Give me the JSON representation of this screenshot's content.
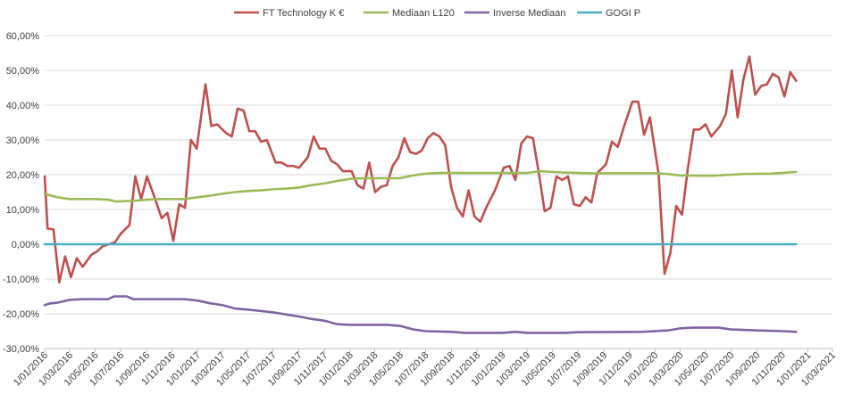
{
  "chart_data": {
    "type": "line",
    "title": "",
    "xlabel": "",
    "ylabel": "",
    "legend_position": "top",
    "grid": "horizontal",
    "ylim": [
      -30,
      60
    ],
    "yticks": [
      {
        "value": 60,
        "label": "60,00%"
      },
      {
        "value": 50,
        "label": "50,00%"
      },
      {
        "value": 40,
        "label": "40,00%"
      },
      {
        "value": 30,
        "label": "30,00%"
      },
      {
        "value": 20,
        "label": "20,00%"
      },
      {
        "value": 10,
        "label": "10,00%"
      },
      {
        "value": 0,
        "label": "0,00%"
      },
      {
        "value": -10,
        "label": "-10,00%"
      },
      {
        "value": -20,
        "label": "-20,00%"
      },
      {
        "value": -30,
        "label": "-30,00%"
      }
    ],
    "xlim": [
      "2016-01-01",
      "2021-03-01"
    ],
    "xticks": [
      {
        "date": "2016-01-01",
        "label": "1/01/2016"
      },
      {
        "date": "2016-03-01",
        "label": "1/03/2016"
      },
      {
        "date": "2016-05-01",
        "label": "1/05/2016"
      },
      {
        "date": "2016-07-01",
        "label": "1/07/2016"
      },
      {
        "date": "2016-09-01",
        "label": "1/09/2016"
      },
      {
        "date": "2016-11-01",
        "label": "1/11/2016"
      },
      {
        "date": "2017-01-01",
        "label": "1/01/2017"
      },
      {
        "date": "2017-03-01",
        "label": "1/03/2017"
      },
      {
        "date": "2017-05-01",
        "label": "1/05/2017"
      },
      {
        "date": "2017-07-01",
        "label": "1/07/2017"
      },
      {
        "date": "2017-09-01",
        "label": "1/09/2017"
      },
      {
        "date": "2017-11-01",
        "label": "1/11/2017"
      },
      {
        "date": "2018-01-01",
        "label": "1/01/2018"
      },
      {
        "date": "2018-03-01",
        "label": "1/03/2018"
      },
      {
        "date": "2018-05-01",
        "label": "1/05/2018"
      },
      {
        "date": "2018-07-01",
        "label": "1/07/2018"
      },
      {
        "date": "2018-09-01",
        "label": "1/09/2018"
      },
      {
        "date": "2018-11-01",
        "label": "1/11/2018"
      },
      {
        "date": "2019-01-01",
        "label": "1/01/2019"
      },
      {
        "date": "2019-03-01",
        "label": "1/03/2019"
      },
      {
        "date": "2019-05-01",
        "label": "1/05/2019"
      },
      {
        "date": "2019-07-01",
        "label": "1/07/2019"
      },
      {
        "date": "2019-09-01",
        "label": "1/09/2019"
      },
      {
        "date": "2019-11-01",
        "label": "1/11/2019"
      },
      {
        "date": "2020-01-01",
        "label": "1/01/2020"
      },
      {
        "date": "2020-03-01",
        "label": "1/03/2020"
      },
      {
        "date": "2020-05-01",
        "label": "1/05/2020"
      },
      {
        "date": "2020-07-01",
        "label": "1/07/2020"
      },
      {
        "date": "2020-09-01",
        "label": "1/09/2020"
      },
      {
        "date": "2020-11-01",
        "label": "1/11/2020"
      },
      {
        "date": "2021-01-01",
        "label": "1/01/2021"
      },
      {
        "date": "2021-03-01",
        "label": "1/03/2021"
      }
    ],
    "series": [
      {
        "name": "FT Technology K €",
        "color": "#C0504D",
        "points": [
          [
            "2016-01-01",
            19.5
          ],
          [
            "2016-01-08",
            4.5
          ],
          [
            "2016-01-22",
            4.3
          ],
          [
            "2016-02-05",
            -11
          ],
          [
            "2016-02-19",
            -3.5
          ],
          [
            "2016-03-04",
            -9.5
          ],
          [
            "2016-03-18",
            -4
          ],
          [
            "2016-04-01",
            -6.5
          ],
          [
            "2016-04-22",
            -3
          ],
          [
            "2016-05-06",
            -2
          ],
          [
            "2016-05-20",
            -0.5
          ],
          [
            "2016-06-03",
            0
          ],
          [
            "2016-06-17",
            0.5
          ],
          [
            "2016-07-01",
            3
          ],
          [
            "2016-07-22",
            5.5
          ],
          [
            "2016-08-05",
            19.5
          ],
          [
            "2016-08-19",
            13
          ],
          [
            "2016-09-02",
            19.5
          ],
          [
            "2016-09-23",
            12.5
          ],
          [
            "2016-10-07",
            7.5
          ],
          [
            "2016-10-21",
            9
          ],
          [
            "2016-11-04",
            1
          ],
          [
            "2016-11-18",
            11.5
          ],
          [
            "2016-12-02",
            10.5
          ],
          [
            "2016-12-16",
            30
          ],
          [
            "2016-12-30",
            27.5
          ],
          [
            "2017-01-20",
            46
          ],
          [
            "2017-02-03",
            34
          ],
          [
            "2017-02-17",
            34.5
          ],
          [
            "2017-03-10",
            32
          ],
          [
            "2017-03-24",
            31
          ],
          [
            "2017-04-07",
            39
          ],
          [
            "2017-04-21",
            38.5
          ],
          [
            "2017-05-05",
            32.5
          ],
          [
            "2017-05-19",
            32.5
          ],
          [
            "2017-06-02",
            29.5
          ],
          [
            "2017-06-16",
            30
          ],
          [
            "2017-07-07",
            23.5
          ],
          [
            "2017-07-21",
            23.5
          ],
          [
            "2017-08-04",
            22.5
          ],
          [
            "2017-08-18",
            22.5
          ],
          [
            "2017-09-01",
            22
          ],
          [
            "2017-09-22",
            25
          ],
          [
            "2017-10-06",
            31
          ],
          [
            "2017-10-20",
            27.5
          ],
          [
            "2017-11-03",
            27.5
          ],
          [
            "2017-11-17",
            24
          ],
          [
            "2017-12-01",
            23
          ],
          [
            "2017-12-15",
            21
          ],
          [
            "2018-01-05",
            21
          ],
          [
            "2018-01-19",
            17
          ],
          [
            "2018-02-02",
            16
          ],
          [
            "2018-02-16",
            23.5
          ],
          [
            "2018-03-02",
            15
          ],
          [
            "2018-03-16",
            16.5
          ],
          [
            "2018-03-30",
            17
          ],
          [
            "2018-04-13",
            22.5
          ],
          [
            "2018-04-27",
            25
          ],
          [
            "2018-05-11",
            30.5
          ],
          [
            "2018-05-25",
            26.5
          ],
          [
            "2018-06-08",
            26
          ],
          [
            "2018-06-22",
            27
          ],
          [
            "2018-07-06",
            30.5
          ],
          [
            "2018-07-20",
            32
          ],
          [
            "2018-08-03",
            31
          ],
          [
            "2018-08-17",
            28.5
          ],
          [
            "2018-08-31",
            16.5
          ],
          [
            "2018-09-14",
            10.5
          ],
          [
            "2018-09-28",
            8
          ],
          [
            "2018-10-12",
            15.5
          ],
          [
            "2018-10-26",
            8
          ],
          [
            "2018-11-09",
            6.5
          ],
          [
            "2018-11-23",
            10.5
          ],
          [
            "2018-12-14",
            15.5
          ],
          [
            "2019-01-04",
            22
          ],
          [
            "2019-01-18",
            22.5
          ],
          [
            "2019-02-01",
            18.5
          ],
          [
            "2019-02-15",
            29
          ],
          [
            "2019-03-01",
            31
          ],
          [
            "2019-03-15",
            30.5
          ],
          [
            "2019-03-29",
            20.5
          ],
          [
            "2019-04-12",
            9.5
          ],
          [
            "2019-04-26",
            10.5
          ],
          [
            "2019-05-10",
            19.5
          ],
          [
            "2019-05-24",
            18.5
          ],
          [
            "2019-06-07",
            19.5
          ],
          [
            "2019-06-21",
            11.5
          ],
          [
            "2019-07-05",
            11
          ],
          [
            "2019-07-19",
            13.5
          ],
          [
            "2019-08-02",
            12
          ],
          [
            "2019-08-16",
            20.5
          ],
          [
            "2019-09-06",
            23
          ],
          [
            "2019-09-20",
            29.5
          ],
          [
            "2019-10-04",
            28
          ],
          [
            "2019-10-18",
            33.5
          ],
          [
            "2019-11-08",
            41
          ],
          [
            "2019-11-22",
            41
          ],
          [
            "2019-12-06",
            31.5
          ],
          [
            "2019-12-20",
            36.5
          ],
          [
            "2020-01-10",
            20
          ],
          [
            "2020-01-24",
            -8.5
          ],
          [
            "2020-02-07",
            -2.5
          ],
          [
            "2020-02-21",
            11
          ],
          [
            "2020-03-06",
            8.5
          ],
          [
            "2020-03-20",
            22
          ],
          [
            "2020-04-03",
            33
          ],
          [
            "2020-04-17",
            33
          ],
          [
            "2020-05-01",
            34.5
          ],
          [
            "2020-05-15",
            31
          ],
          [
            "2020-06-05",
            34
          ],
          [
            "2020-06-19",
            37.5
          ],
          [
            "2020-07-03",
            50
          ],
          [
            "2020-07-17",
            36.5
          ],
          [
            "2020-07-31",
            47.5
          ],
          [
            "2020-08-14",
            54
          ],
          [
            "2020-08-28",
            43
          ],
          [
            "2020-09-11",
            45.5
          ],
          [
            "2020-09-25",
            46
          ],
          [
            "2020-10-09",
            49
          ],
          [
            "2020-10-23",
            48
          ],
          [
            "2020-11-06",
            42.5
          ],
          [
            "2020-11-20",
            49.5
          ],
          [
            "2020-12-04",
            47
          ]
        ]
      },
      {
        "name": "Mediaan L120",
        "color": "#9BBB59",
        "points": [
          [
            "2016-01-01",
            14.5
          ],
          [
            "2016-02-01",
            13.5
          ],
          [
            "2016-03-01",
            13
          ],
          [
            "2016-05-01",
            13
          ],
          [
            "2016-06-01",
            12.8
          ],
          [
            "2016-06-20",
            12.3
          ],
          [
            "2016-08-01",
            12.5
          ],
          [
            "2016-09-01",
            12.8
          ],
          [
            "2016-10-01",
            13
          ],
          [
            "2016-12-01",
            13
          ],
          [
            "2017-01-01",
            13.5
          ],
          [
            "2017-02-01",
            14
          ],
          [
            "2017-03-01",
            14.5
          ],
          [
            "2017-04-01",
            15
          ],
          [
            "2017-05-01",
            15.3
          ],
          [
            "2017-06-01",
            15.5
          ],
          [
            "2017-07-01",
            15.8
          ],
          [
            "2017-08-01",
            16
          ],
          [
            "2017-09-01",
            16.3
          ],
          [
            "2017-10-01",
            17
          ],
          [
            "2017-11-01",
            17.5
          ],
          [
            "2017-12-01",
            18.2
          ],
          [
            "2018-01-01",
            18.8
          ],
          [
            "2018-02-01",
            19
          ],
          [
            "2018-05-01",
            19
          ],
          [
            "2018-06-01",
            19.8
          ],
          [
            "2018-07-01",
            20.3
          ],
          [
            "2018-08-01",
            20.5
          ],
          [
            "2019-03-01",
            20.5
          ],
          [
            "2019-04-01",
            21
          ],
          [
            "2019-05-01",
            20.8
          ],
          [
            "2019-06-01",
            20.6
          ],
          [
            "2019-08-01",
            20.4
          ],
          [
            "2020-01-01",
            20.4
          ],
          [
            "2020-02-01",
            20.2
          ],
          [
            "2020-03-01",
            19.8
          ],
          [
            "2020-05-01",
            19.7
          ],
          [
            "2020-06-01",
            19.8
          ],
          [
            "2020-07-01",
            20
          ],
          [
            "2020-08-01",
            20.2
          ],
          [
            "2020-10-01",
            20.3
          ],
          [
            "2020-11-01",
            20.5
          ],
          [
            "2020-12-04",
            20.8
          ]
        ]
      },
      {
        "name": "Inverse Mediaan",
        "color": "#8064A2",
        "points": [
          [
            "2016-01-01",
            -17.5
          ],
          [
            "2016-01-15",
            -17
          ],
          [
            "2016-02-01",
            -16.8
          ],
          [
            "2016-03-01",
            -16
          ],
          [
            "2016-04-01",
            -15.8
          ],
          [
            "2016-06-01",
            -15.8
          ],
          [
            "2016-06-15",
            -15
          ],
          [
            "2016-07-15",
            -15
          ],
          [
            "2016-08-01",
            -15.8
          ],
          [
            "2016-12-01",
            -15.8
          ],
          [
            "2017-01-01",
            -16.2
          ],
          [
            "2017-02-01",
            -17
          ],
          [
            "2017-03-01",
            -17.5
          ],
          [
            "2017-04-01",
            -18.5
          ],
          [
            "2017-05-01",
            -18.8
          ],
          [
            "2017-06-01",
            -19.2
          ],
          [
            "2017-07-01",
            -19.6
          ],
          [
            "2017-08-01",
            -20.2
          ],
          [
            "2017-09-01",
            -20.8
          ],
          [
            "2017-10-01",
            -21.5
          ],
          [
            "2017-11-01",
            -22
          ],
          [
            "2017-12-01",
            -23
          ],
          [
            "2018-01-01",
            -23.2
          ],
          [
            "2018-04-01",
            -23.2
          ],
          [
            "2018-05-01",
            -23.5
          ],
          [
            "2018-06-01",
            -24.5
          ],
          [
            "2018-07-01",
            -25
          ],
          [
            "2018-09-01",
            -25.2
          ],
          [
            "2018-10-01",
            -25.5
          ],
          [
            "2019-01-01",
            -25.5
          ],
          [
            "2019-02-01",
            -25.2
          ],
          [
            "2019-03-01",
            -25.5
          ],
          [
            "2019-06-01",
            -25.5
          ],
          [
            "2019-07-01",
            -25.3
          ],
          [
            "2019-12-01",
            -25.2
          ],
          [
            "2020-01-01",
            -25
          ],
          [
            "2020-02-01",
            -24.8
          ],
          [
            "2020-03-01",
            -24.2
          ],
          [
            "2020-04-01",
            -24
          ],
          [
            "2020-06-01",
            -24
          ],
          [
            "2020-07-01",
            -24.5
          ],
          [
            "2020-09-01",
            -24.8
          ],
          [
            "2020-11-01",
            -25
          ],
          [
            "2020-12-04",
            -25.2
          ]
        ]
      },
      {
        "name": "GOGI P",
        "color": "#4BACC6",
        "points": [
          [
            "2016-01-01",
            0
          ],
          [
            "2020-12-04",
            0
          ]
        ]
      }
    ]
  }
}
